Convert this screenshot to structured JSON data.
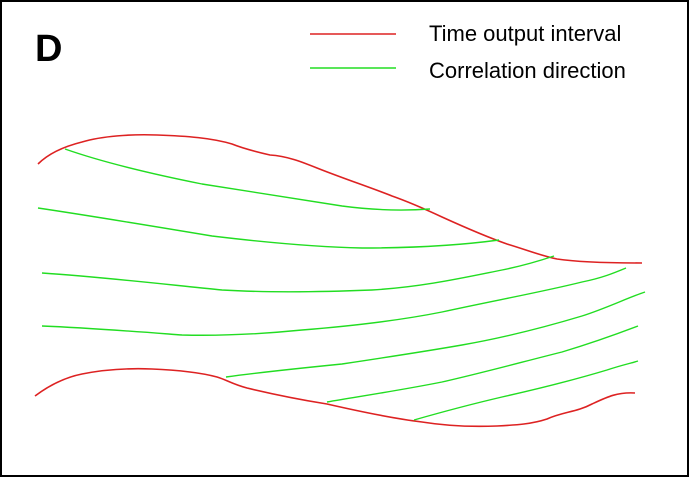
{
  "panel_letter": "D",
  "legend": [
    {
      "label": "Time output interval",
      "color": "#dd2222"
    },
    {
      "label": "Correlation direction",
      "color": "#22dd22"
    }
  ],
  "colors": {
    "time_output_interval": "#dd2222",
    "correlation_direction": "#22dd22",
    "frame": "#000000"
  }
}
